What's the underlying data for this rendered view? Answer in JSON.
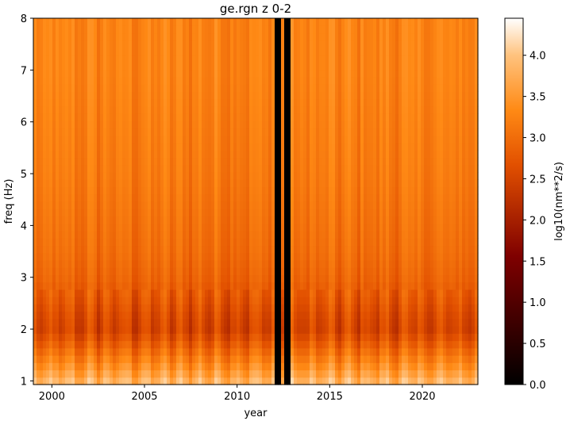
{
  "chart_data": {
    "type": "heatmap",
    "title": "ge.rgn z 0-2",
    "xlabel": "year",
    "ylabel": "freq (Hz)",
    "xlim": [
      1999.0,
      2023.0
    ],
    "ylim": [
      0.93,
      8.0
    ],
    "x_ticks": [
      2000,
      2005,
      2010,
      2015,
      2020
    ],
    "x_tick_labels": [
      "2000",
      "2005",
      "2010",
      "2015",
      "2020"
    ],
    "y_ticks": [
      1,
      2,
      3,
      4,
      5,
      6,
      7,
      8
    ],
    "y_tick_labels": [
      "1",
      "2",
      "3",
      "4",
      "5",
      "6",
      "7",
      "8"
    ],
    "colorbar": {
      "label": "log10(nm**2/s)",
      "colormap": "gist_heat",
      "range": [
        0.0,
        4.45
      ],
      "ticks": [
        0.0,
        0.5,
        1.0,
        1.5,
        2.0,
        2.5,
        3.0,
        3.5,
        4.0
      ],
      "tick_labels": [
        "0.0",
        "0.5",
        "1.0",
        "1.5",
        "2.0",
        "2.5",
        "3.0",
        "3.5",
        "4.0"
      ]
    },
    "data_gaps_years": [
      [
        2012.1,
        2012.35
      ],
      [
        2012.6,
        2012.95
      ]
    ],
    "frequency_profile": {
      "freq_hz": [
        0.95,
        1.2,
        1.5,
        1.8,
        2.0,
        2.3,
        2.6,
        3.0,
        3.5,
        4.0,
        5.0,
        6.0,
        7.0,
        8.0
      ],
      "typical_log10_power": [
        3.9,
        3.5,
        3.1,
        2.7,
        2.5,
        2.6,
        2.75,
        2.9,
        3.0,
        3.05,
        3.15,
        3.2,
        3.25,
        3.25
      ]
    }
  }
}
